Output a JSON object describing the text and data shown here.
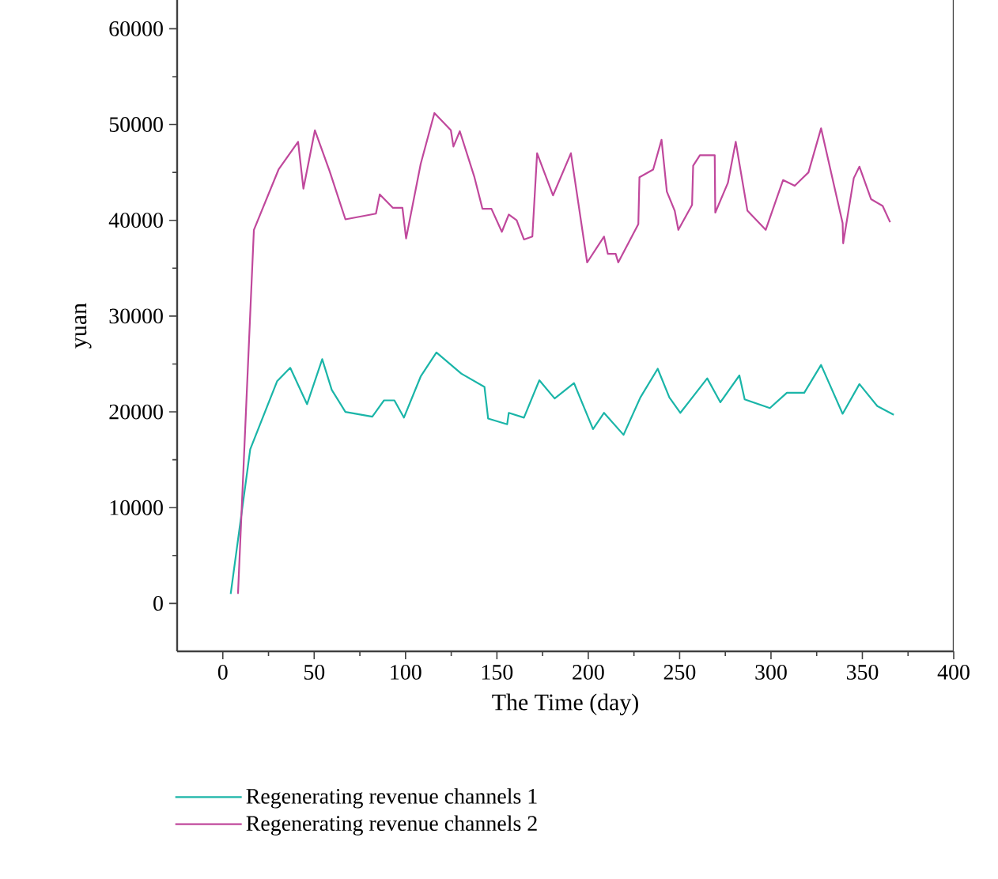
{
  "chart_data": {
    "type": "line",
    "xlabel": "The Time (day)",
    "ylabel": "yuan",
    "xlim": [
      -25,
      400
    ],
    "ylim": [
      -5000,
      63000
    ],
    "xticks": [
      0,
      50,
      100,
      150,
      200,
      250,
      300,
      350,
      400
    ],
    "yticks": [
      0,
      10000,
      20000,
      30000,
      40000,
      50000,
      60000
    ],
    "grid": false,
    "legend": "bottom",
    "marker": "none",
    "line_style": "solid",
    "series": [
      {
        "name": "Regenerating revenue channels 1",
        "color": "#1ab5a8",
        "x": [
          4.3,
          15.0,
          29.7,
          36.9,
          46.1,
          54.4,
          59.6,
          67.1,
          81.8,
          88.2,
          93.9,
          99.1,
          108.3,
          116.9,
          130.5,
          143.2,
          145.2,
          155.6,
          156.5,
          164.8,
          173.2,
          181.6,
          192.2,
          202.6,
          208.6,
          219.3,
          228.5,
          238.0,
          244.4,
          250.4,
          265.1,
          272.3,
          282.7,
          285.6,
          299.4,
          308.7,
          318.2,
          327.4,
          339.2,
          348.4,
          358.2,
          367.2
        ],
        "values": [
          1000,
          16100,
          23200,
          24600,
          20800,
          25500,
          22300,
          20000,
          19500,
          21200,
          21200,
          19400,
          23700,
          26200,
          24000,
          22600,
          19300,
          18700,
          19900,
          19400,
          23300,
          21400,
          23000,
          18200,
          19900,
          17600,
          21500,
          24500,
          21500,
          19900,
          23500,
          21000,
          23800,
          21300,
          20400,
          22000,
          22000,
          24900,
          19800,
          22900,
          20600,
          19700
        ]
      },
      {
        "name": "Regenerating revenue channels 2",
        "color": "#c0489c",
        "x": [
          8.3,
          17.0,
          30.5,
          41.2,
          44.1,
          50.4,
          58.5,
          67.1,
          83.8,
          85.9,
          93.1,
          98.3,
          100.3,
          108.3,
          115.8,
          124.8,
          126.2,
          129.7,
          137.7,
          142.1,
          147.0,
          152.7,
          156.5,
          160.8,
          164.8,
          169.4,
          172.0,
          180.7,
          190.5,
          199.4,
          208.6,
          210.7,
          215.0,
          216.4,
          227.4,
          228.0,
          235.5,
          240.1,
          243.0,
          247.3,
          249.3,
          256.8,
          257.4,
          261.1,
          269.2,
          269.5,
          276.4,
          280.7,
          287.1,
          297.1,
          306.6,
          313.0,
          320.5,
          327.4,
          339.2,
          339.5,
          345.3,
          348.4,
          354.8,
          361.1,
          365.2
        ],
        "values": [
          1000,
          39000,
          45300,
          48200,
          43300,
          49400,
          45100,
          40100,
          40700,
          42700,
          41300,
          41300,
          38100,
          45900,
          51200,
          49400,
          47700,
          49300,
          44500,
          41200,
          41200,
          38800,
          40600,
          40000,
          38000,
          38300,
          47000,
          42600,
          47000,
          35600,
          38300,
          36500,
          36500,
          35600,
          39600,
          44500,
          45300,
          48400,
          43000,
          41000,
          39000,
          41600,
          45700,
          46800,
          46800,
          40800,
          43900,
          48200,
          41000,
          39000,
          44200,
          43600,
          45000,
          49600,
          39700,
          37600,
          44400,
          45600,
          42200,
          41500,
          39800
        ]
      }
    ]
  }
}
